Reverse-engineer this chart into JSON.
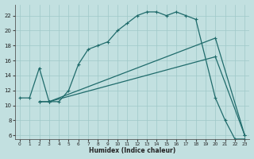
{
  "xlabel": "Humidex (Indice chaleur)",
  "xlim": [
    -0.5,
    23.5
  ],
  "ylim": [
    5.5,
    23.5
  ],
  "yticks": [
    6,
    8,
    10,
    12,
    14,
    16,
    18,
    20,
    22
  ],
  "xticks": [
    0,
    1,
    2,
    3,
    4,
    5,
    6,
    7,
    8,
    9,
    10,
    11,
    12,
    13,
    14,
    15,
    16,
    17,
    18,
    19,
    20,
    21,
    22,
    23
  ],
  "bg_color": "#c2e0e0",
  "line_color": "#1f6b6b",
  "grid_color": "#9fc8c8",
  "line1_x": [
    0,
    1,
    2,
    3,
    4,
    5,
    6,
    7,
    8,
    9,
    10,
    11,
    12,
    13,
    14,
    15,
    16,
    17,
    18,
    20,
    21,
    22,
    23
  ],
  "line1_y": [
    11,
    11,
    15,
    10.5,
    10.5,
    12,
    15.5,
    17.5,
    18,
    18.5,
    20,
    21,
    22,
    22.5,
    22.5,
    22,
    22.5,
    22,
    21.5,
    11,
    8,
    5.5,
    5.5
  ],
  "line2_x": [
    2,
    3,
    20,
    23
  ],
  "line2_y": [
    10.5,
    10.5,
    16.5,
    6
  ],
  "line3_x": [
    2,
    3,
    20,
    23
  ],
  "line3_y": [
    10.5,
    10.5,
    19,
    6
  ]
}
